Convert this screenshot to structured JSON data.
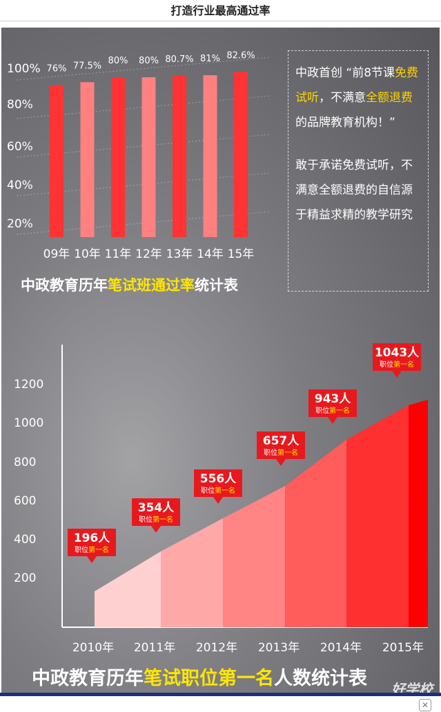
{
  "header": {
    "title": "打造行业最高通过率"
  },
  "promo": {
    "p1_a": "中政首创 “前8节课",
    "p1_hl1": "免费试听",
    "p1_b": "，不满意",
    "p1_hl2": "全额退费",
    "p1_c": "的品牌教育机构！”",
    "p2": "敢于承诺免费试听，不满意全额退费的自信源于精益求精的教学研究"
  },
  "colors": {
    "red": "#ff3333",
    "pink": "#ff8080",
    "yellow": "#ffe600",
    "navy": "#1c2f7a"
  },
  "chart_data": [
    {
      "type": "bar",
      "title_parts": [
        "中政教育历年",
        "笔试班通过率",
        "统计表"
      ],
      "categories": [
        "09年",
        "10年",
        "11年",
        "12年",
        "13年",
        "14年",
        "15年"
      ],
      "values": [
        76,
        77.5,
        80,
        80,
        80.7,
        81,
        82.6
      ],
      "value_labels": [
        "76%",
        "77.5%",
        "80%",
        "80%",
        "80.7%",
        "81%",
        "82.6%"
      ],
      "ytick_labels": [
        "100%",
        "80%",
        "60%",
        "40%",
        "20%"
      ],
      "bar_colors": [
        "#ff3333",
        "#ff8080",
        "#ff3333",
        "#ff8080",
        "#ff3333",
        "#ff8080",
        "#ff3333"
      ]
    },
    {
      "type": "area",
      "title_parts": [
        "中政教育历年",
        "笔试职位第一名",
        "人数统计表"
      ],
      "x": [
        "2010年",
        "2011年",
        "2012年",
        "2013年",
        "2014年",
        "2015年"
      ],
      "values": [
        196,
        354,
        556,
        657,
        943,
        1043
      ],
      "callouts": [
        "196人",
        "354人",
        "556人",
        "657人",
        "943人",
        "1043人"
      ],
      "callout_sub_a": "职位",
      "callout_sub_b": "第一名",
      "ytick_labels": [
        "1200",
        "1000",
        "800",
        "600",
        "400",
        "200"
      ],
      "segment_colors": [
        "#ffd0d0",
        "#ffa8a8",
        "#ff8484",
        "#ff5c5c",
        "#ff3030",
        "#ff0000"
      ]
    }
  ],
  "watermark": "好学校"
}
